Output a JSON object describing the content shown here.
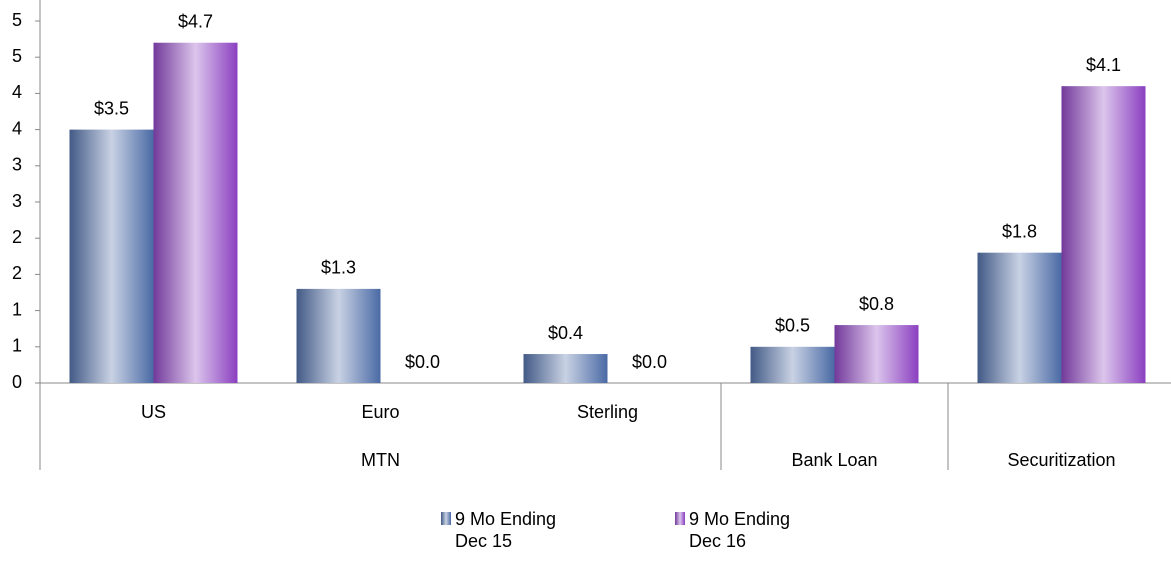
{
  "chart_data": {
    "type": "bar",
    "groups": [
      {
        "name": "MTN",
        "categories": [
          "US",
          "Euro",
          "Sterling"
        ]
      },
      {
        "name": "Bank Loan",
        "categories": [
          null
        ]
      },
      {
        "name": "Securitization",
        "categories": [
          null
        ]
      }
    ],
    "series": [
      {
        "name": "9 Mo Ending Dec 15",
        "color": "#4a6aa5",
        "values": [
          3.5,
          1.3,
          0.4,
          0.5,
          1.8
        ],
        "value_labels": [
          "$3.5",
          "$1.3",
          "$0.4",
          "$0.5",
          "$1.8"
        ]
      },
      {
        "name": "9 Mo Ending Dec 16",
        "color": "#8a3fc0",
        "values": [
          4.7,
          0.0,
          0.0,
          0.8,
          4.1
        ],
        "value_labels": [
          "$4.7",
          "$0.0",
          "$0.0",
          "$0.8",
          "$4.1"
        ]
      }
    ],
    "ylim": [
      0,
      5
    ],
    "yticks": [
      0,
      {
        "value": 0.5,
        "label": "1"
      },
      1,
      {
        "value": 1.5,
        "label": "2"
      },
      2,
      {
        "value": 2.5,
        "label": "3"
      },
      3,
      {
        "value": 3.5,
        "label": "4"
      },
      4,
      {
        "value": 4.5,
        "label": "5"
      },
      5
    ],
    "grid": false,
    "legend": "bottom"
  }
}
